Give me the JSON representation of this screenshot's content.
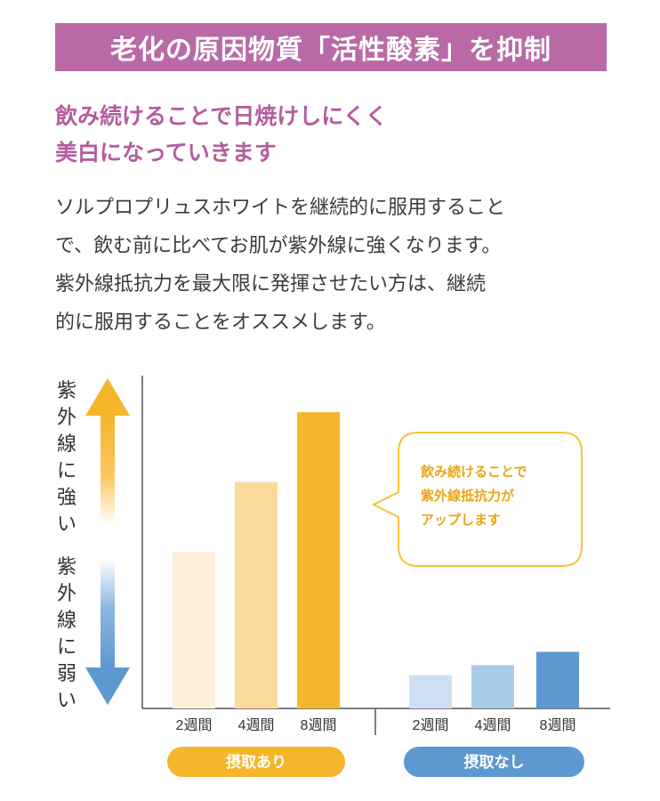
{
  "header": {
    "title": "老化の原因物質「活性酸素」を抑制"
  },
  "subtitle": {
    "lines": [
      "飲み続けることで日焼けしにくく",
      "美白になっていきます"
    ]
  },
  "body": {
    "lines": [
      "ソルプロプリュスホワイトを継続的に服用すること",
      "で、飲む前に比べてお肌が紫外線に強くなります。",
      "紫外線抵抗力を最大限に発揮させたい方は、継続",
      "的に服用することをオススメします。"
    ]
  },
  "chart_data": {
    "type": "bar",
    "y_axis": {
      "top_label": "紫外線に強い",
      "bottom_label": "紫外線に弱い",
      "numeric_ticks": false
    },
    "ylim": [
      0,
      100
    ],
    "groups": [
      {
        "name": "摂取あり",
        "categories": [
          "2週間",
          "4週間",
          "8週間"
        ],
        "values": [
          47,
          68,
          89
        ],
        "colors": [
          "#fdf0da",
          "#fbd99a",
          "#f6b62b"
        ],
        "badge_color": "#f6b62b"
      },
      {
        "name": "摂取なし",
        "categories": [
          "2週間",
          "4週間",
          "8週間"
        ],
        "values": [
          10,
          13,
          17
        ],
        "colors": [
          "#cde0f3",
          "#a9cbea",
          "#5e98d0"
        ],
        "badge_color": "#5e98d0"
      }
    ],
    "callout": {
      "lines": [
        "飲み続けることで",
        "紫外線抵抗力が",
        "アップします"
      ]
    },
    "colors": {
      "up_arrow": "#f6b62b",
      "down_arrow": "#5e98d0",
      "axis": "#555555",
      "callout_border": "#f6c43c",
      "callout_text": "#e8a617"
    }
  }
}
